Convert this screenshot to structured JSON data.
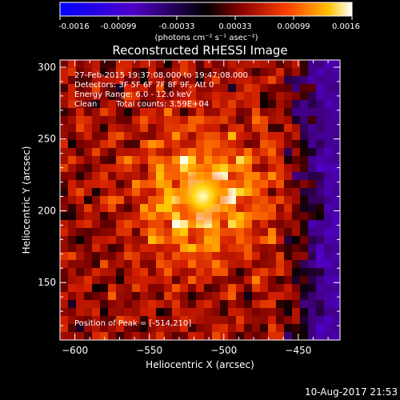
{
  "chart_data": {
    "type": "heatmap",
    "title": "Reconstructed RHESSI Image",
    "xlabel": "Heliocentric X (arcsec)",
    "ylabel": "Heliocentric Y (arcsec)",
    "x_range": [
      -610,
      -422
    ],
    "y_range": [
      110,
      305
    ],
    "x_ticks": [
      -600,
      -550,
      -500,
      -450
    ],
    "y_ticks": [
      150,
      200,
      250,
      300
    ],
    "colorbar": {
      "range": [
        -0.0016,
        0.0016
      ],
      "ticks": [
        "-0.0016",
        "-0.00099",
        "-0.00033",
        "0.00033",
        "0.00099",
        "0.0016"
      ],
      "unit_label": "(photons cm⁻² s⁻¹ asec⁻²)"
    },
    "peak_position": [
      -514,
      210
    ],
    "annotations": [
      "27-Feb-2015 19:37:08.000 to 19:47:08.000",
      "Detectors: 3F 5F 6F 7F 8F 9F, Att 0",
      "Energy Range: 6.0 - 12.0 keV",
      "Clean",
      "Total counts: 3.59E+04",
      "Position of Peak = [-514,210]"
    ]
  },
  "footer": {
    "date": "10-Aug-2017 21:53"
  }
}
